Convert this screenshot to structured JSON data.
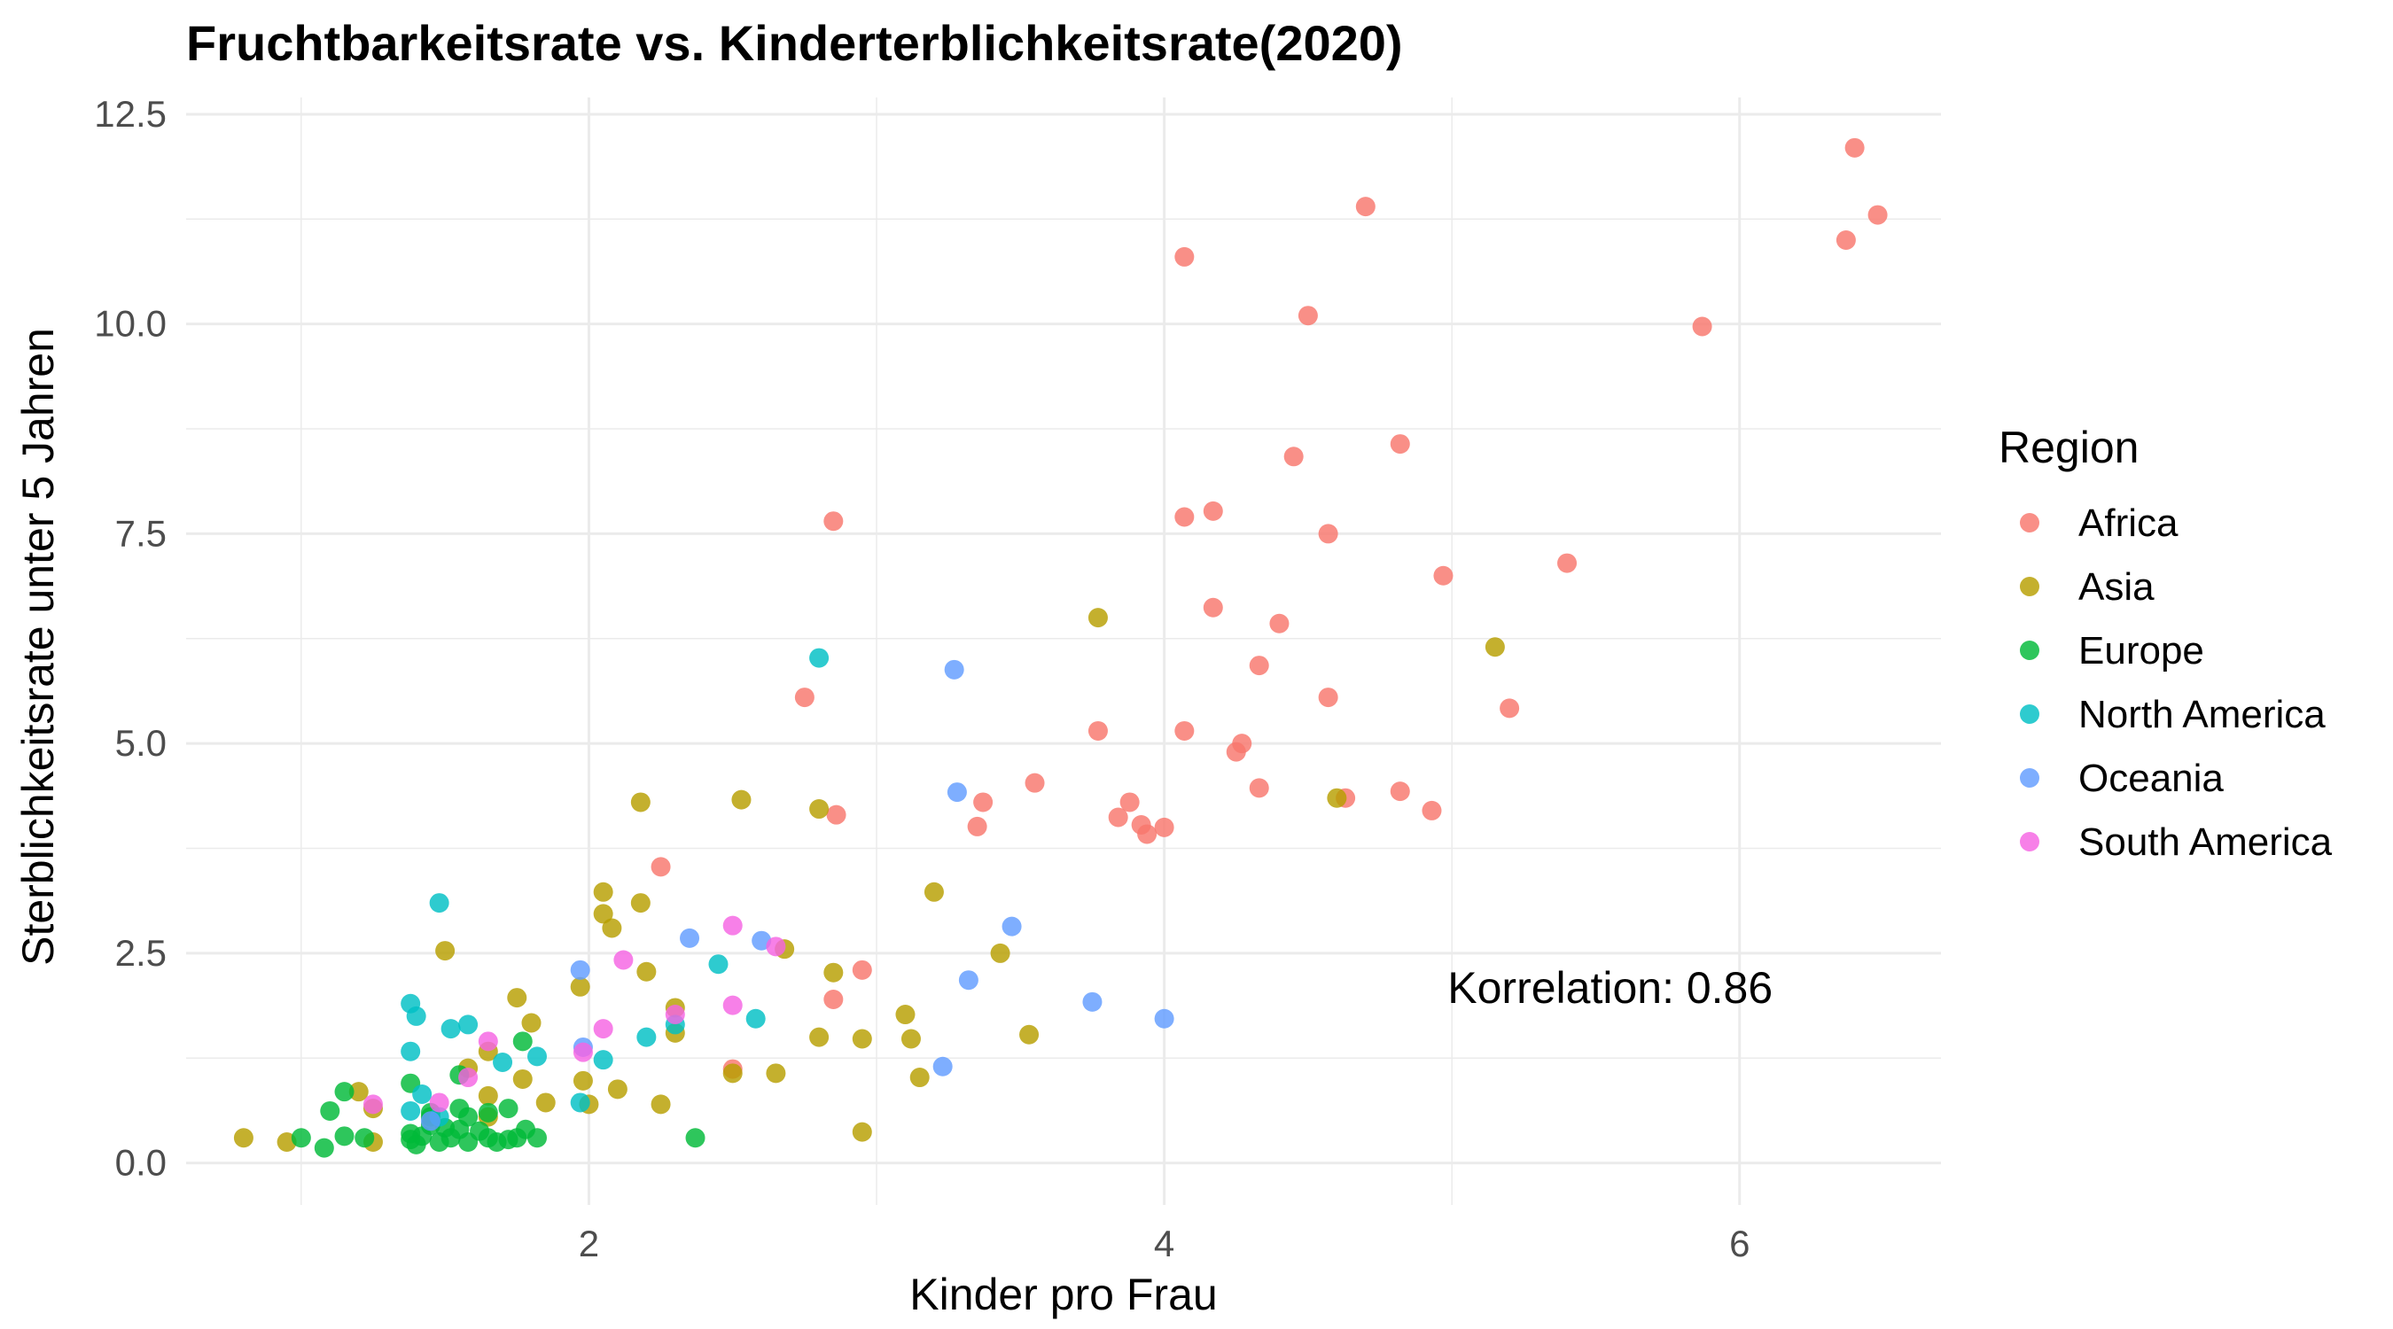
{
  "chart_data": {
    "type": "scatter",
    "title": "Fruchtbarkeitsrate vs. Kinderterblichkeitsrate(2020)",
    "xlabel": "Kinder pro Frau",
    "ylabel": "Sterblichkeitsrate unter 5 Jahren",
    "xlim": [
      0.6,
      6.7
    ],
    "ylim": [
      -0.5,
      12.7
    ],
    "x_ticks": [
      2,
      4,
      6
    ],
    "y_ticks": [
      0.0,
      2.5,
      5.0,
      7.5,
      10.0,
      12.5
    ],
    "x_tick_labels": [
      "2",
      "4",
      "6"
    ],
    "y_tick_labels": [
      "0.0",
      "2.5",
      "5.0",
      "7.5",
      "10.0",
      "12.5"
    ],
    "grid": true,
    "legend": {
      "title": "Region",
      "position": "right"
    },
    "annotation": {
      "text": "Korrelation: 0.86",
      "x": 5.55,
      "y": 2.1
    },
    "series": [
      {
        "name": "Africa",
        "color": "#F8766D",
        "points": [
          [
            6.4,
            12.1
          ],
          [
            6.37,
            11.0
          ],
          [
            6.48,
            11.3
          ],
          [
            4.7,
            11.4
          ],
          [
            4.07,
            10.8
          ],
          [
            4.5,
            10.1
          ],
          [
            5.87,
            9.97
          ],
          [
            4.82,
            8.57
          ],
          [
            4.45,
            8.42
          ],
          [
            4.07,
            7.7
          ],
          [
            4.17,
            7.77
          ],
          [
            2.85,
            7.65
          ],
          [
            4.57,
            7.5
          ],
          [
            4.97,
            7.0
          ],
          [
            5.4,
            7.15
          ],
          [
            4.17,
            6.62
          ],
          [
            4.4,
            6.43
          ],
          [
            4.33,
            5.93
          ],
          [
            2.75,
            5.55
          ],
          [
            3.77,
            5.15
          ],
          [
            4.07,
            5.15
          ],
          [
            4.27,
            5.0
          ],
          [
            4.25,
            4.9
          ],
          [
            4.57,
            5.55
          ],
          [
            5.2,
            5.42
          ],
          [
            3.55,
            4.53
          ],
          [
            3.37,
            4.3
          ],
          [
            3.88,
            4.3
          ],
          [
            4.33,
            4.47
          ],
          [
            4.63,
            4.35
          ],
          [
            4.82,
            4.43
          ],
          [
            4.93,
            4.2
          ],
          [
            3.35,
            4.01
          ],
          [
            3.84,
            4.12
          ],
          [
            3.92,
            4.03
          ],
          [
            3.94,
            3.92
          ],
          [
            4.0,
            4.0
          ],
          [
            2.86,
            4.15
          ],
          [
            2.25,
            3.53
          ],
          [
            2.95,
            2.3
          ],
          [
            2.85,
            1.95
          ],
          [
            2.5,
            1.12
          ]
        ]
      },
      {
        "name": "Asia",
        "color": "#B79F00",
        "points": [
          [
            3.77,
            6.5
          ],
          [
            5.15,
            6.15
          ],
          [
            2.18,
            4.3
          ],
          [
            2.53,
            4.33
          ],
          [
            2.8,
            4.22
          ],
          [
            4.6,
            4.35
          ],
          [
            3.2,
            3.23
          ],
          [
            2.05,
            3.23
          ],
          [
            2.18,
            3.1
          ],
          [
            2.05,
            2.97
          ],
          [
            2.08,
            2.8
          ],
          [
            1.5,
            2.53
          ],
          [
            2.68,
            2.55
          ],
          [
            3.43,
            2.5
          ],
          [
            2.85,
            2.27
          ],
          [
            2.2,
            2.28
          ],
          [
            1.97,
            2.1
          ],
          [
            1.75,
            1.97
          ],
          [
            2.3,
            1.85
          ],
          [
            3.1,
            1.77
          ],
          [
            1.8,
            1.67
          ],
          [
            2.3,
            1.55
          ],
          [
            2.8,
            1.5
          ],
          [
            2.95,
            1.48
          ],
          [
            3.12,
            1.48
          ],
          [
            3.53,
            1.53
          ],
          [
            1.65,
            1.33
          ],
          [
            1.58,
            1.13
          ],
          [
            2.5,
            1.07
          ],
          [
            2.65,
            1.07
          ],
          [
            3.15,
            1.02
          ],
          [
            1.77,
            1.0
          ],
          [
            1.98,
            0.98
          ],
          [
            2.1,
            0.88
          ],
          [
            1.65,
            0.8
          ],
          [
            2.0,
            0.7
          ],
          [
            1.85,
            0.72
          ],
          [
            2.25,
            0.7
          ],
          [
            1.2,
            0.85
          ],
          [
            1.25,
            0.65
          ],
          [
            1.65,
            0.55
          ],
          [
            2.95,
            0.37
          ],
          [
            0.8,
            0.3
          ],
          [
            0.95,
            0.25
          ],
          [
            1.25,
            0.25
          ]
        ]
      },
      {
        "name": "Europe",
        "color": "#00BA38",
        "points": [
          [
            1.77,
            1.45
          ],
          [
            1.55,
            1.05
          ],
          [
            1.38,
            0.95
          ],
          [
            1.15,
            0.85
          ],
          [
            1.1,
            0.62
          ],
          [
            1.55,
            0.65
          ],
          [
            1.65,
            0.6
          ],
          [
            1.72,
            0.65
          ],
          [
            1.45,
            0.55
          ],
          [
            1.58,
            0.55
          ],
          [
            1.45,
            0.45
          ],
          [
            1.5,
            0.42
          ],
          [
            1.55,
            0.4
          ],
          [
            1.62,
            0.38
          ],
          [
            1.78,
            0.4
          ],
          [
            1.38,
            0.35
          ],
          [
            1.42,
            0.32
          ],
          [
            1.52,
            0.3
          ],
          [
            1.65,
            0.3
          ],
          [
            1.72,
            0.28
          ],
          [
            1.82,
            0.3
          ],
          [
            1.38,
            0.28
          ],
          [
            1.48,
            0.25
          ],
          [
            1.58,
            0.25
          ],
          [
            1.68,
            0.25
          ],
          [
            1.75,
            0.3
          ],
          [
            1.15,
            0.32
          ],
          [
            1.0,
            0.3
          ],
          [
            1.08,
            0.18
          ],
          [
            1.22,
            0.3
          ],
          [
            1.4,
            0.22
          ],
          [
            2.37,
            0.3
          ],
          [
            1.45,
            0.6
          ]
        ]
      },
      {
        "name": "North America",
        "color": "#00BFC4",
        "points": [
          [
            2.8,
            6.02
          ],
          [
            1.48,
            3.1
          ],
          [
            1.38,
            1.9
          ],
          [
            1.4,
            1.75
          ],
          [
            1.52,
            1.6
          ],
          [
            1.58,
            1.65
          ],
          [
            2.3,
            1.65
          ],
          [
            1.38,
            1.33
          ],
          [
            1.7,
            1.2
          ],
          [
            1.82,
            1.27
          ],
          [
            2.05,
            1.23
          ],
          [
            2.2,
            1.5
          ],
          [
            2.45,
            2.37
          ],
          [
            2.58,
            1.72
          ],
          [
            1.42,
            0.82
          ],
          [
            1.38,
            0.62
          ],
          [
            1.48,
            0.55
          ],
          [
            1.97,
            0.72
          ]
        ]
      },
      {
        "name": "Oceania",
        "color": "#619CFF",
        "points": [
          [
            3.27,
            5.88
          ],
          [
            3.28,
            4.42
          ],
          [
            2.35,
            2.68
          ],
          [
            2.6,
            2.65
          ],
          [
            3.47,
            2.82
          ],
          [
            3.32,
            2.18
          ],
          [
            1.97,
            2.3
          ],
          [
            3.75,
            1.92
          ],
          [
            4.0,
            1.72
          ],
          [
            3.23,
            1.15
          ],
          [
            1.98,
            1.38
          ],
          [
            1.45,
            0.5
          ]
        ]
      },
      {
        "name": "South America",
        "color": "#F564E3",
        "points": [
          [
            2.5,
            2.83
          ],
          [
            2.65,
            2.58
          ],
          [
            2.12,
            2.42
          ],
          [
            2.5,
            1.88
          ],
          [
            2.3,
            1.77
          ],
          [
            2.05,
            1.6
          ],
          [
            1.98,
            1.32
          ],
          [
            1.65,
            1.45
          ],
          [
            1.58,
            1.02
          ],
          [
            1.48,
            0.72
          ],
          [
            1.25,
            0.7
          ]
        ]
      }
    ]
  }
}
